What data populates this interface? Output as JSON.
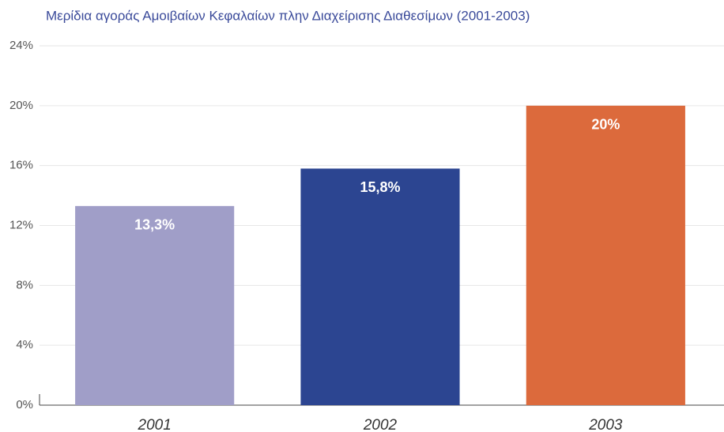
{
  "chart_data": {
    "type": "bar",
    "title": "Μερίδια αγοράς Αμοιβαίων Κεφαλαίων πλην Διαχείρισης Διαθεσίμων (2001-2003)",
    "categories": [
      "2001",
      "2002",
      "2003"
    ],
    "values": [
      13.3,
      15.8,
      20
    ],
    "value_labels": [
      "13,3%",
      "15,8%",
      "20%"
    ],
    "colors": [
      "#a09ec8",
      "#2c4591",
      "#dc6a3c"
    ],
    "ylim": [
      0,
      24
    ],
    "yticks": [
      {
        "value": 0,
        "label": "0%"
      },
      {
        "value": 4,
        "label": "4%"
      },
      {
        "value": 8,
        "label": "8%"
      },
      {
        "value": 12,
        "label": "12%"
      },
      {
        "value": 16,
        "label": "16%"
      },
      {
        "value": 20,
        "label": "20%"
      },
      {
        "value": 24,
        "label": "24%"
      }
    ],
    "grid": true
  }
}
